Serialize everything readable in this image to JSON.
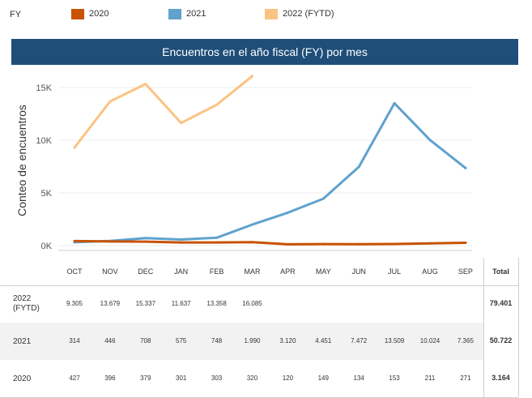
{
  "legend": {
    "label": "FY",
    "items": [
      {
        "name": "2020",
        "color": "#c85200"
      },
      {
        "name": "2021",
        "color": "#5fa2ce"
      },
      {
        "name": "2022 (FYTD)",
        "color": "#fbc381"
      }
    ]
  },
  "chart_data": {
    "type": "line",
    "title": "Encuentros en el año fiscal (FY) por mes",
    "ylabel": "Conteo de encuentros",
    "xlabel": "",
    "categories": [
      "OCT",
      "NOV",
      "DEC",
      "JAN",
      "FEB",
      "MAR",
      "APR",
      "MAY",
      "JUN",
      "JUL",
      "AUG",
      "SEP"
    ],
    "ylim": [
      0,
      17000
    ],
    "yticks": [
      {
        "value": 0,
        "label": "0K"
      },
      {
        "value": 5000,
        "label": "5K"
      },
      {
        "value": 10000,
        "label": "10K"
      },
      {
        "value": 15000,
        "label": "15K"
      }
    ],
    "grid": true,
    "series": [
      {
        "name": "2022 (FYTD)",
        "color": "#fbc381",
        "values": [
          9305,
          13679,
          15337,
          11637,
          13358,
          16085,
          null,
          null,
          null,
          null,
          null,
          null
        ]
      },
      {
        "name": "2021",
        "color": "#5fa2ce",
        "values": [
          314,
          446,
          708,
          575,
          748,
          1990,
          3120,
          4451,
          7472,
          13509,
          10024,
          7365
        ]
      },
      {
        "name": "2020",
        "color": "#c85200",
        "values": [
          427,
          396,
          379,
          301,
          303,
          320,
          120,
          149,
          134,
          153,
          211,
          271
        ]
      }
    ]
  },
  "table": {
    "total_header": "Total",
    "rows": [
      {
        "label": [
          "2022",
          "(FYTD)"
        ],
        "cells": [
          "9.305",
          "13.679",
          "15.337",
          "11.637",
          "13.358",
          "16.085",
          "",
          "",
          "",
          "",
          "",
          ""
        ],
        "total": "79.401"
      },
      {
        "label": [
          "2021"
        ],
        "cells": [
          "314",
          "446",
          "708",
          "575",
          "748",
          "1.990",
          "3.120",
          "4.451",
          "7.472",
          "13.509",
          "10.024",
          "7.365"
        ],
        "total": "50.722"
      },
      {
        "label": [
          "2020"
        ],
        "cells": [
          "427",
          "396",
          "379",
          "301",
          "303",
          "320",
          "120",
          "149",
          "134",
          "153",
          "211",
          "271"
        ],
        "total": "3.164"
      }
    ]
  }
}
